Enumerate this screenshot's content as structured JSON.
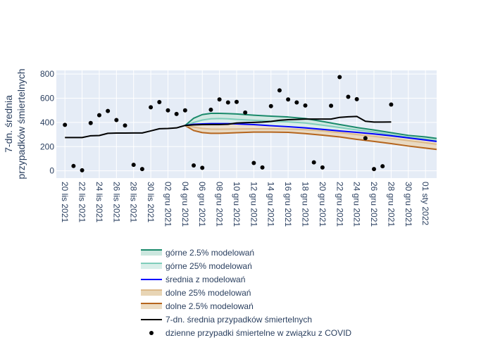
{
  "chart_data": {
    "type": "line",
    "ylabel_lines": [
      "7-dn. średnia",
      "przypadków śmiertelnych"
    ],
    "ylim": [
      -60,
      830
    ],
    "yticks": [
      0,
      200,
      400,
      600,
      800
    ],
    "x_tick_labels": [
      "20 lis 2021",
      "22 lis 2021",
      "24 lis 2021",
      "26 lis 2021",
      "28 lis 2021",
      "30 lis 2021",
      "02 gru 2021",
      "04 gru 2021",
      "06 gru 2021",
      "08 gru 2021",
      "10 gru 2021",
      "12 gru 2021",
      "14 gru 2021",
      "16 gru 2021",
      "18 gru 2021",
      "20 gru 2021",
      "22 gru 2021",
      "24 gru 2021",
      "26 gru 2021",
      "28 gru 2021",
      "30 gru 2021",
      "01 sty 2022"
    ],
    "x_tick_days": [
      0,
      2,
      4,
      6,
      8,
      10,
      12,
      14,
      16,
      18,
      20,
      22,
      24,
      26,
      28,
      30,
      32,
      34,
      36,
      38,
      40,
      42
    ],
    "xlim": [
      -1,
      43.3
    ],
    "colors": {
      "upper95": "#1a8a6b",
      "upper25": "#7fcdbb",
      "band_upper": "#cce7df",
      "mean": "#0000ff",
      "band_lower": "#e8d5b5",
      "lower25": "#dcb98a",
      "lower95": "#b5651d",
      "avg": "#000000",
      "daily": "#000000",
      "plot_bg": "#e5ecf6",
      "grid": "#ffffff"
    },
    "series": [
      {
        "key": "upper95",
        "name": "górne 2.5% modelowań",
        "x": [
          14,
          15,
          16,
          17,
          18,
          19,
          20,
          22,
          24,
          26,
          28,
          30,
          32,
          34,
          36,
          38,
          40,
          42,
          43.3
        ],
        "values": [
          375,
          435,
          465,
          475,
          475,
          473,
          470,
          460,
          452,
          445,
          432,
          408,
          383,
          358,
          338,
          315,
          293,
          280,
          268
        ]
      },
      {
        "key": "upper25",
        "name": "górne 25% modelowań",
        "x": [
          14,
          15,
          16,
          17,
          18,
          19,
          20,
          22,
          24,
          26,
          28,
          30,
          32,
          34,
          36,
          38,
          40,
          42,
          43.3
        ],
        "values": [
          375,
          400,
          420,
          430,
          432,
          430,
          425,
          418,
          410,
          405,
          395,
          378,
          358,
          338,
          320,
          298,
          278,
          262,
          250
        ]
      },
      {
        "key": "mean",
        "name": "średnia z modelowań",
        "x": [
          14,
          15,
          16,
          17,
          18,
          19,
          20,
          22,
          24,
          26,
          28,
          30,
          32,
          34,
          36,
          38,
          40,
          42,
          43.3
        ],
        "values": [
          375,
          385,
          388,
          390,
          390,
          390,
          388,
          382,
          373,
          365,
          355,
          343,
          330,
          318,
          305,
          290,
          272,
          255,
          243
        ]
      },
      {
        "key": "lower25",
        "name": "dolne 25% modelowań",
        "x": [
          14,
          15,
          16,
          17,
          18,
          19,
          20,
          22,
          24,
          26,
          28,
          30,
          32,
          34,
          36,
          38,
          40,
          42,
          43.3
        ],
        "values": [
          375,
          362,
          350,
          345,
          344,
          345,
          346,
          347,
          347,
          345,
          340,
          330,
          316,
          300,
          285,
          268,
          250,
          232,
          220
        ]
      },
      {
        "key": "lower95",
        "name": "dolne 2.5% modelowań",
        "x": [
          14,
          15,
          16,
          17,
          18,
          19,
          20,
          22,
          24,
          26,
          28,
          30,
          32,
          34,
          36,
          38,
          40,
          42,
          43.3
        ],
        "values": [
          375,
          333,
          316,
          310,
          310,
          312,
          315,
          320,
          320,
          318,
          308,
          295,
          280,
          260,
          243,
          225,
          205,
          188,
          177
        ]
      },
      {
        "key": "avg",
        "name": "7-dn. średnia przypadków śmiertelnych",
        "x": [
          0,
          1,
          2,
          3,
          4,
          5,
          6,
          7,
          8,
          9,
          10,
          11,
          12,
          13,
          14,
          15,
          16,
          17,
          18,
          19,
          20,
          21,
          22,
          23,
          24,
          25,
          26,
          27,
          28,
          29,
          30,
          31,
          32,
          33,
          34,
          35,
          36,
          37,
          38
        ],
        "values": [
          275,
          275,
          275,
          290,
          292,
          310,
          312,
          312,
          313,
          313,
          330,
          348,
          350,
          355,
          375,
          380,
          382,
          383,
          383,
          385,
          395,
          398,
          400,
          403,
          408,
          418,
          423,
          425,
          428,
          428,
          428,
          428,
          442,
          447,
          450,
          410,
          403,
          403,
          404
        ]
      },
      {
        "key": "daily",
        "name": "dzienne przypadki śmiertelne w związku z COVID",
        "x": [
          0,
          1,
          2,
          3,
          4,
          5,
          6,
          7,
          8,
          9,
          10,
          11,
          12,
          13,
          14,
          15,
          16,
          17,
          18,
          19,
          20,
          21,
          22,
          23,
          24,
          25,
          26,
          27,
          28,
          29,
          30,
          31,
          32,
          33,
          34,
          35,
          36,
          37,
          38
        ],
        "values": [
          380,
          40,
          5,
          395,
          460,
          495,
          420,
          375,
          50,
          15,
          525,
          568,
          500,
          470,
          500,
          45,
          25,
          505,
          590,
          565,
          570,
          482,
          65,
          28,
          535,
          665,
          590,
          565,
          540,
          70,
          28,
          538,
          775,
          612,
          592,
          270,
          15,
          38,
          548
        ]
      }
    ],
    "legend": [
      "górne 2.5% modelowań",
      "górne 25% modelowań",
      "średnia z modelowań",
      "dolne 25% modelowań",
      "dolne 2.5% modelowań",
      "7-dn. średnia przypadków śmiertelnych",
      "dzienne przypadki śmiertelne w związku z COVID"
    ]
  }
}
